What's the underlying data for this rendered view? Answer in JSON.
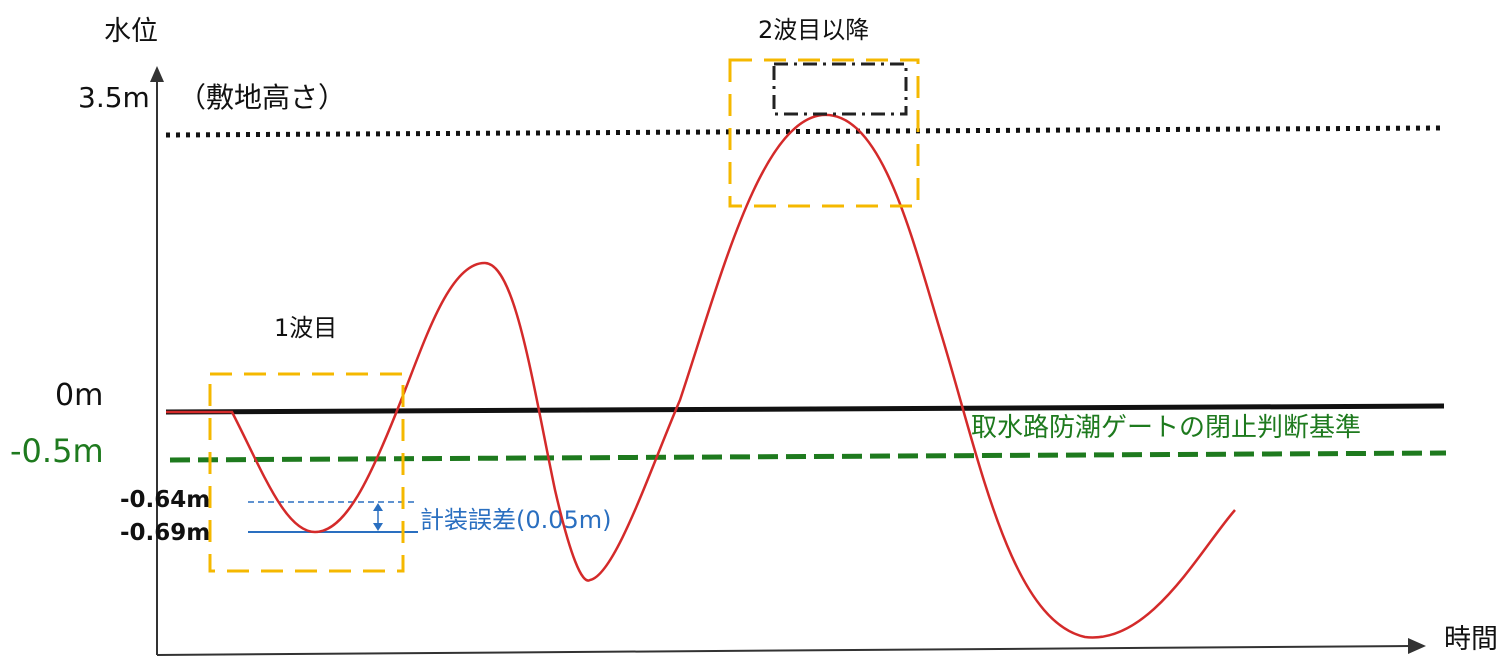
{
  "axes": {
    "y_label": "水位",
    "x_label": "時間"
  },
  "levels": {
    "ground": {
      "value_label": "3.5m",
      "note": "（敷地高さ）",
      "color": "#111111"
    },
    "zero": {
      "value_label": "0m",
      "color": "#000000"
    },
    "gate_criterion": {
      "value_label": "-0.5m",
      "label": "取水路防潮ゲートの閉止判断基準",
      "color": "#1e7a1e"
    },
    "measured_low": {
      "value_label": "-0.64m"
    },
    "with_error_low": {
      "value_label": "-0.69m"
    }
  },
  "annotations": {
    "first_wave": "1波目",
    "later_waves": "2波目以降",
    "instrument_error": "計装誤差(0.05m)"
  },
  "colors": {
    "wave": "#d42a2a",
    "highlight_box": "#f5b800",
    "error_lines": "#2a6fc0"
  }
}
